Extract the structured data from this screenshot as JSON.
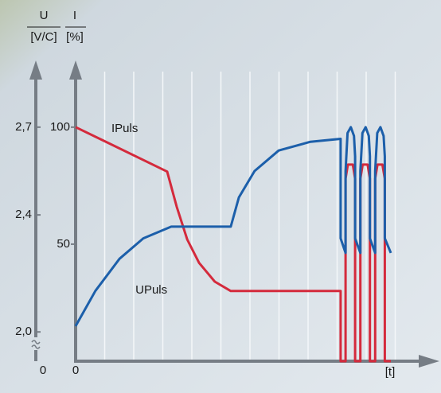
{
  "chart_data": {
    "type": "line",
    "y_axis_label_top": "I",
    "y_axis_label_unit": "[%]",
    "y2_axis_label_top": "U",
    "y2_axis_label_unit": "[V/C]",
    "x_axis_label": "[t]",
    "y2_break_label": "0",
    "xlim": [
      0,
      12
    ],
    "xticks": [
      0
    ],
    "xgrid": [
      1,
      2,
      3,
      4,
      5,
      6,
      7,
      8,
      9,
      10,
      11
    ],
    "ylim": [
      0,
      120
    ],
    "yticks": [
      50,
      100
    ],
    "y2lim": [
      1.9,
      2.86
    ],
    "y2ticks": [
      {
        "value": 2.0,
        "label": "2,0"
      },
      {
        "value": 2.4,
        "label": "2,4"
      },
      {
        "value": 2.7,
        "label": "2,7"
      }
    ],
    "series": [
      {
        "name": "IPuls",
        "color": "#d42a3c",
        "x": [
          0,
          3.15,
          3.48,
          3.84,
          4.25,
          4.79,
          5.34,
          9.12,
          9.12,
          9.29,
          9.29,
          9.37,
          9.54,
          9.62,
          9.62,
          9.8,
          9.8,
          9.88,
          10.05,
          10.13,
          10.13,
          10.31,
          10.31,
          10.39,
          10.56,
          10.64,
          10.64,
          10.85
        ],
        "values": [
          100,
          81,
          66,
          52,
          42,
          34,
          30,
          30,
          0,
          0,
          78,
          84,
          84,
          78,
          0,
          0,
          78,
          84,
          84,
          78,
          0,
          0,
          78,
          84,
          84,
          78,
          0,
          0
        ]
      },
      {
        "name": "UPuls",
        "color": "#1c5faa",
        "axis": "y2",
        "x": [
          0,
          0.68,
          1.51,
          2.33,
          3.29,
          3.97,
          5.34,
          5.62,
          6.16,
          6.99,
          8.08,
          9.12,
          9.12,
          9.29,
          9.29,
          9.36,
          9.47,
          9.58,
          9.62,
          9.62,
          9.8,
          9.8,
          9.87,
          9.98,
          10.09,
          10.13,
          10.13,
          10.31,
          10.31,
          10.38,
          10.49,
          10.6,
          10.64,
          10.64,
          10.85
        ],
        "values": [
          2.02,
          2.14,
          2.25,
          2.32,
          2.36,
          2.36,
          2.36,
          2.46,
          2.55,
          2.62,
          2.65,
          2.66,
          2.32,
          2.27,
          2.55,
          2.68,
          2.7,
          2.67,
          2.6,
          2.32,
          2.27,
          2.55,
          2.68,
          2.7,
          2.67,
          2.6,
          2.32,
          2.27,
          2.55,
          2.68,
          2.7,
          2.67,
          2.6,
          2.32,
          2.27
        ]
      }
    ]
  }
}
